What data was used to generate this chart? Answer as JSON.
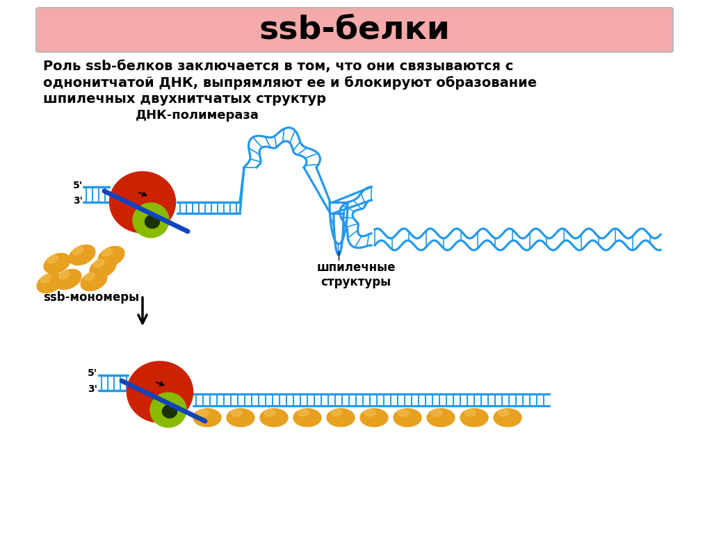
{
  "title": "ssb-белки",
  "title_bg": "#F4AAAA",
  "title_border": "#BBBBBB",
  "bg_color": "#FFFFFF",
  "desc1": "Роль ssb-белков заключается в том, что они связываются с",
  "desc2": "однонитчатой ДНК, выпрямляют ее и блокируют образование",
  "desc3": "шпилечных двухнитчатых структур",
  "label_polymerase": "ДНК-полимераза",
  "label_ssb_monomers": "ssb-мономеры",
  "label_hairpin": "шпилечные\nструктуры",
  "dna_color": "#2299EE",
  "ssb_color": "#E8A020",
  "poly_red": "#CC2200",
  "poly_green": "#88BB00",
  "poly_dark": "#1A3300",
  "poly_blue": "#1144BB",
  "arrow_color": "#111111"
}
